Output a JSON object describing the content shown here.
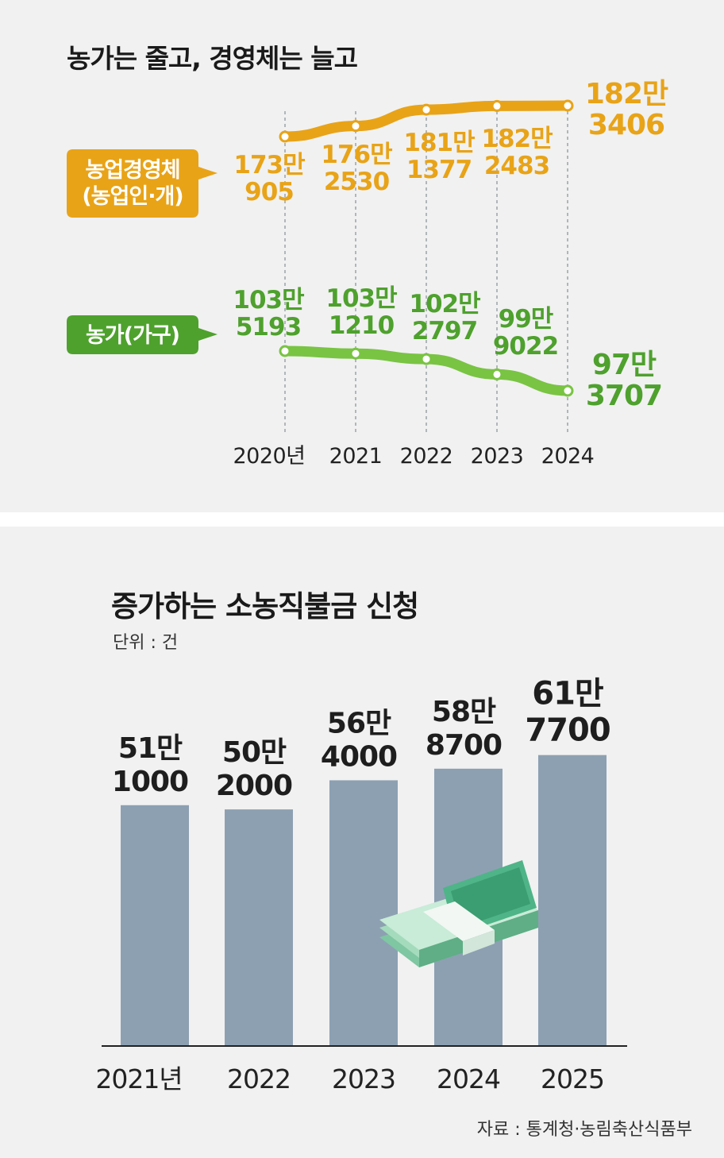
{
  "chart_data": [
    {
      "type": "line",
      "title": "농가는 줄고, 경영체는 늘고",
      "categories": [
        "2020년",
        "2021",
        "2022",
        "2023",
        "2024"
      ],
      "series": [
        {
          "name": "농업경영체 (농업인·개)",
          "name_line1": "농업경영체",
          "name_line2": "(농업인·개)",
          "color": "#e8a317",
          "values": [
            1730905,
            1762530,
            1811377,
            1822483,
            1823406
          ],
          "labels": [
            [
              "173만",
              "905"
            ],
            [
              "176만",
              "2530"
            ],
            [
              "181만",
              "1377"
            ],
            [
              "182만",
              "2483"
            ],
            [
              "182만",
              "3406"
            ]
          ]
        },
        {
          "name": "농가(가구)",
          "name_line1": "농가(가구)",
          "color": "#4ea12d",
          "line_color": "#79c443",
          "values": [
            1035193,
            1031210,
            1022797,
            999022,
            973707
          ],
          "labels": [
            [
              "103만",
              "5193"
            ],
            [
              "103만",
              "1210"
            ],
            [
              "102만",
              "2797"
            ],
            [
              "99만",
              "9022"
            ],
            [
              "97만",
              "3707"
            ]
          ]
        }
      ]
    },
    {
      "type": "bar",
      "title": "증가하는 소농직불금 신청",
      "unit": "단위 : 건",
      "categories": [
        "2021년",
        "2022",
        "2023",
        "2024",
        "2025"
      ],
      "values": [
        511000,
        502000,
        564000,
        588700,
        617700
      ],
      "labels": [
        [
          "51만",
          "1000"
        ],
        [
          "50만",
          "2000"
        ],
        [
          "56만",
          "4000"
        ],
        [
          "58만",
          "8700"
        ],
        [
          "61만",
          "7700"
        ]
      ],
      "bar_color": "#8da0b2",
      "source": "자료 : 통계청·농림축산식품부",
      "note_icon": "korean-banknote-bundle-10000"
    }
  ]
}
